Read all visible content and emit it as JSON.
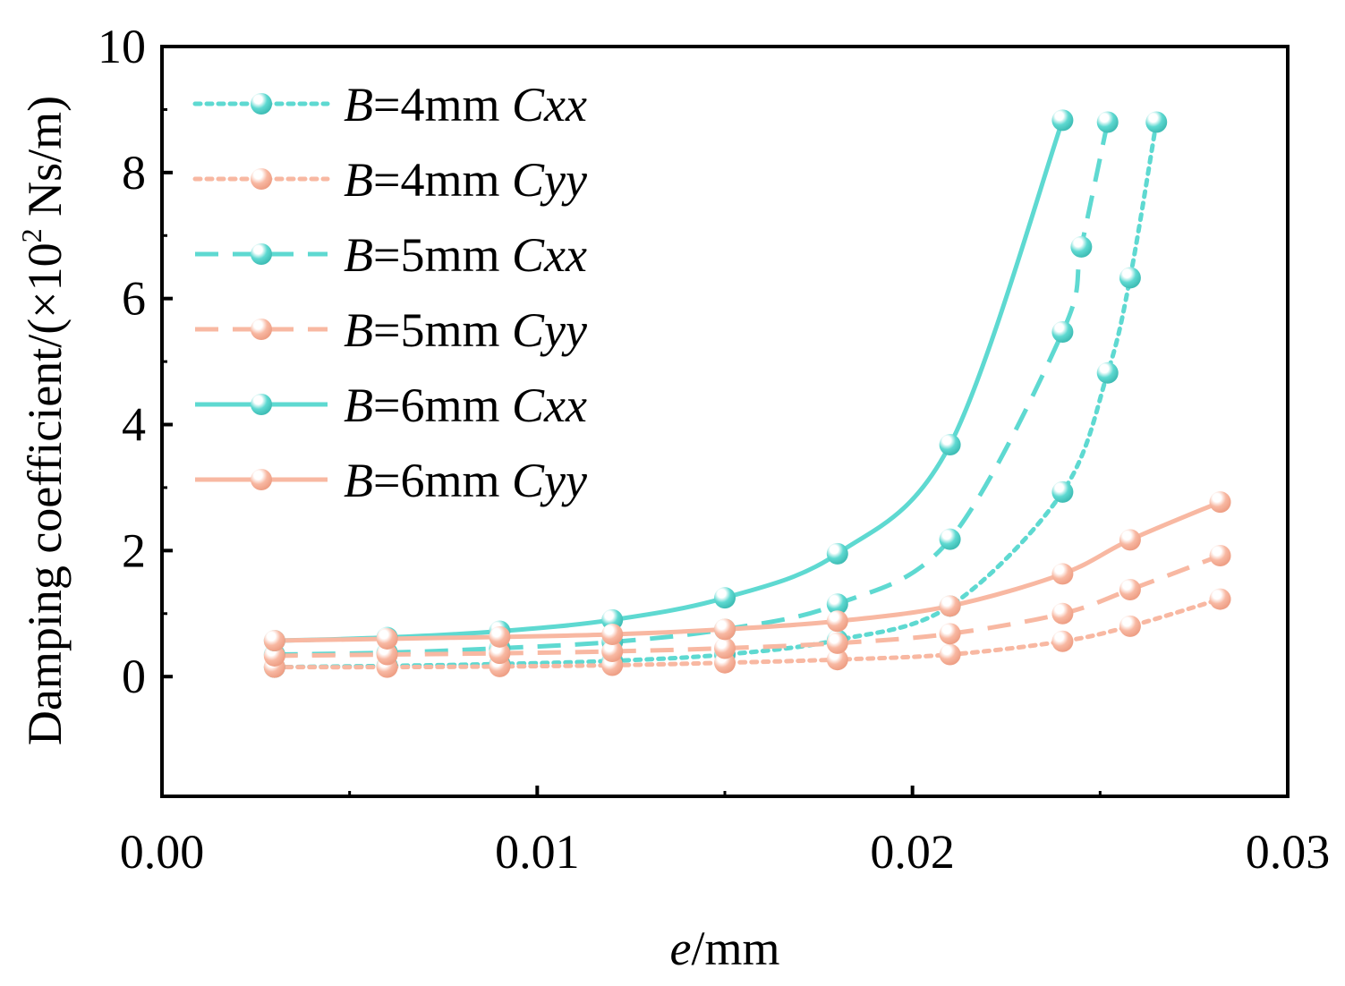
{
  "chart_data": {
    "type": "line",
    "title": "",
    "xlabel": {
      "italic": "e",
      "rest": "/mm"
    },
    "ylabel": {
      "prefix": "Damping coefficient/(×10",
      "sup": "2",
      "suffix": " Ns/m)"
    },
    "xlim": [
      0.0,
      0.03
    ],
    "ylim": [
      -1.9,
      10
    ],
    "xticks": [
      0.0,
      0.01,
      0.02,
      0.03
    ],
    "xtick_labels": [
      "0.00",
      "0.01",
      "0.02",
      "0.03"
    ],
    "yticks": [
      0,
      2,
      4,
      6,
      8,
      10
    ],
    "ytick_labels": [
      "0",
      "2",
      "4",
      "6",
      "8",
      "10"
    ],
    "grid": false,
    "legend_position": "top-left",
    "colors": {
      "cxx": "#5ed9d1",
      "cyy": "#f8b8a2"
    },
    "series": [
      {
        "name": "B=4mm Cxx",
        "label_b": "B",
        "label_eq": "=4mm ",
        "label_c": "Cxx",
        "dash": "dotted",
        "color_key": "cxx",
        "x": [
          0.003,
          0.006,
          0.009,
          0.012,
          0.015,
          0.018,
          0.021,
          0.024,
          0.0252,
          0.0258,
          0.0265
        ],
        "y": [
          0.15,
          0.17,
          0.2,
          0.25,
          0.35,
          0.58,
          1.12,
          2.93,
          4.82,
          6.33,
          8.8
        ]
      },
      {
        "name": "B=4mm Cyy",
        "label_b": "B",
        "label_eq": "=4mm ",
        "label_c": "Cyy",
        "dash": "dotted",
        "color_key": "cyy",
        "x": [
          0.003,
          0.006,
          0.009,
          0.012,
          0.015,
          0.018,
          0.021,
          0.024,
          0.0258,
          0.0282
        ],
        "y": [
          0.15,
          0.15,
          0.16,
          0.18,
          0.22,
          0.27,
          0.35,
          0.56,
          0.8,
          1.23
        ]
      },
      {
        "name": "B=5mm Cxx",
        "label_b": "B",
        "label_eq": "=5mm ",
        "label_c": "Cxx",
        "dash": "dashed",
        "color_key": "cxx",
        "x": [
          0.003,
          0.006,
          0.009,
          0.012,
          0.015,
          0.018,
          0.021,
          0.024,
          0.0245,
          0.0252
        ],
        "y": [
          0.35,
          0.38,
          0.45,
          0.55,
          0.75,
          1.15,
          2.18,
          5.47,
          6.82,
          8.8
        ]
      },
      {
        "name": "B=5mm Cyy",
        "label_b": "B",
        "label_eq": "=5mm ",
        "label_c": "Cyy",
        "dash": "dashed",
        "color_key": "cyy",
        "x": [
          0.003,
          0.006,
          0.009,
          0.012,
          0.015,
          0.018,
          0.021,
          0.024,
          0.0258,
          0.0282
        ],
        "y": [
          0.33,
          0.35,
          0.37,
          0.4,
          0.45,
          0.53,
          0.68,
          1.0,
          1.38,
          1.92
        ]
      },
      {
        "name": "B=6mm Cxx",
        "label_b": "B",
        "label_eq": "=6mm ",
        "label_c": "Cxx",
        "dash": "solid",
        "color_key": "cxx",
        "x": [
          0.003,
          0.006,
          0.009,
          0.012,
          0.015,
          0.018,
          0.021,
          0.024
        ],
        "y": [
          0.57,
          0.62,
          0.72,
          0.9,
          1.25,
          1.95,
          3.68,
          8.83
        ]
      },
      {
        "name": "B=6mm Cyy",
        "label_b": "B",
        "label_eq": "=6mm ",
        "label_c": "Cyy",
        "dash": "solid",
        "color_key": "cyy",
        "x": [
          0.003,
          0.006,
          0.009,
          0.012,
          0.015,
          0.018,
          0.021,
          0.024,
          0.0258,
          0.0282
        ],
        "y": [
          0.57,
          0.6,
          0.63,
          0.67,
          0.75,
          0.88,
          1.12,
          1.63,
          2.17,
          2.77
        ]
      }
    ]
  }
}
